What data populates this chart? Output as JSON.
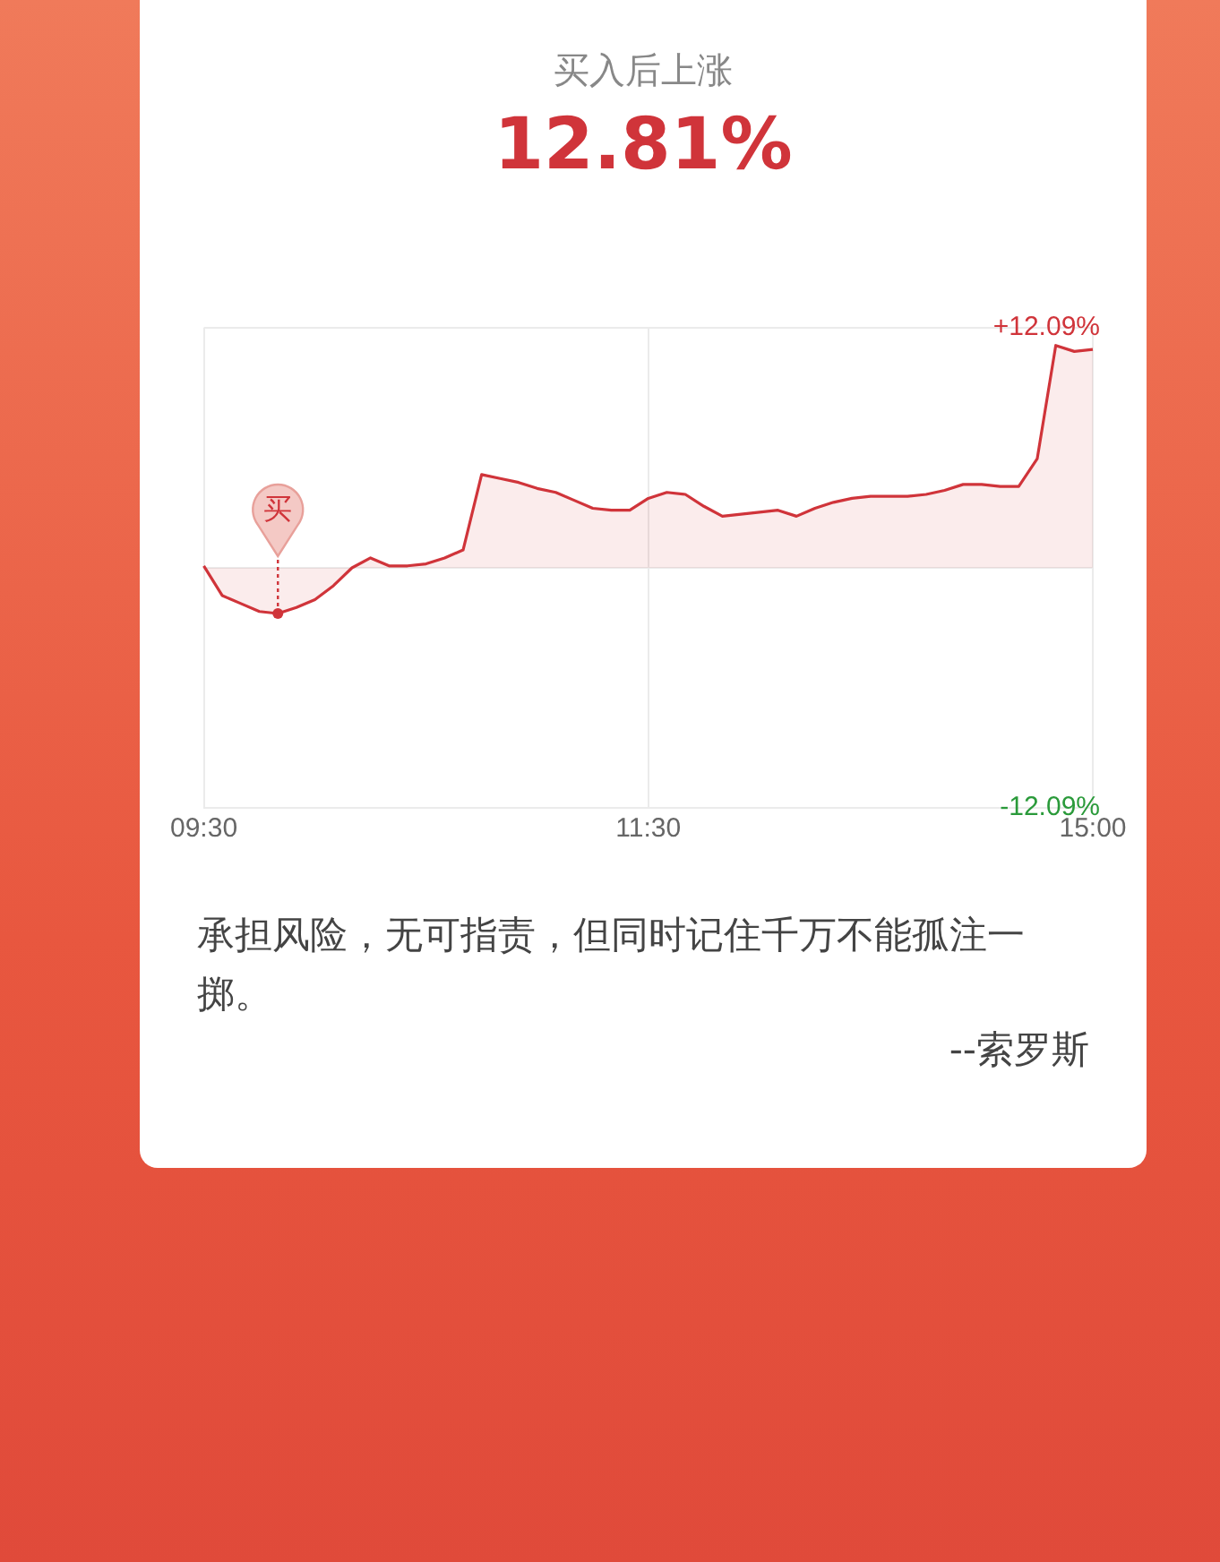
{
  "chart_data": {
    "type": "area",
    "title": "买入后上涨",
    "subtitle": "12.81%",
    "categories": [
      "09:30",
      null,
      null,
      null,
      null,
      null,
      null,
      null,
      null,
      null,
      null,
      null,
      null,
      null,
      null,
      null,
      null,
      null,
      null,
      null,
      null,
      null,
      null,
      null,
      "11:30",
      null,
      null,
      null,
      null,
      null,
      null,
      null,
      null,
      null,
      null,
      null,
      null,
      null,
      null,
      null,
      null,
      null,
      null,
      null,
      null,
      null,
      null,
      null,
      "15:00"
    ],
    "series": [
      {
        "color": "#d0343a",
        "values": [
          0.1,
          -1.4,
          -1.8,
          -2.2,
          -2.3,
          -2.0,
          -1.6,
          -0.9,
          0.0,
          0.5,
          0.1,
          0.1,
          0.2,
          0.5,
          0.9,
          4.7,
          4.5,
          4.3,
          4.0,
          3.8,
          3.4,
          3.0,
          2.9,
          2.9,
          3.5,
          3.8,
          3.7,
          3.1,
          2.6,
          2.7,
          2.8,
          2.9,
          2.6,
          3.0,
          3.3,
          3.5,
          3.6,
          3.6,
          3.6,
          3.7,
          3.9,
          4.2,
          4.2,
          4.1,
          4.1,
          5.5,
          11.2,
          10.9,
          11.0
        ]
      }
    ],
    "ylim": [
      -12.09,
      12.09
    ],
    "yticks": [
      {
        "value": -12.09,
        "label": "-12.09%"
      },
      {
        "value": 0,
        "label": null
      },
      {
        "value": 12.09,
        "label": "+12.09%"
      }
    ],
    "grid": true,
    "marker": "none",
    "annotations": [
      {
        "text": "买",
        "y": -2.3
      },
      "承担风险，无可指责，但同时记住千万不能孤注一掷。",
      "--索罗斯"
    ]
  }
}
